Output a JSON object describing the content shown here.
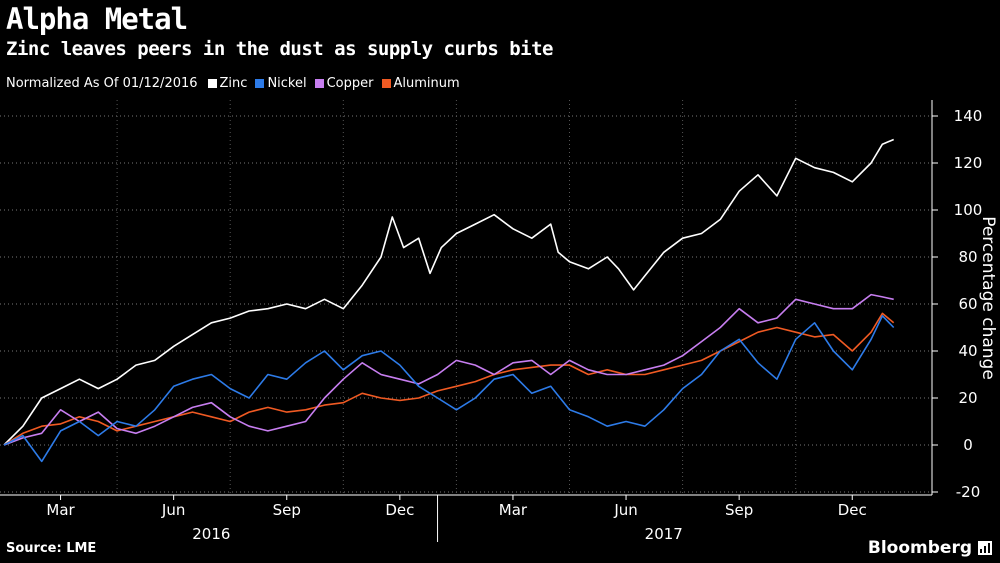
{
  "header": {
    "title": "Alpha Metal",
    "subtitle": "Zinc leaves peers in the dust as supply curbs bite"
  },
  "legend": {
    "note": "Normalized As Of 01/12/2016",
    "items": [
      {
        "label": "Zinc",
        "color": "#ffffff"
      },
      {
        "label": "Nickel",
        "color": "#2d7be8"
      },
      {
        "label": "Copper",
        "color": "#c77ef0"
      },
      {
        "label": "Aluminum",
        "color": "#f05a23"
      }
    ]
  },
  "footer": {
    "source": "Source: LME",
    "brand": "Bloomberg"
  },
  "chart_data": {
    "type": "line",
    "title": "Alpha Metal",
    "subtitle": "Zinc leaves peers in the dust as supply curbs bite",
    "ylabel": "Percentage change",
    "ylim": [
      -25,
      145
    ],
    "yticks": [
      -20,
      0,
      20,
      40,
      60,
      80,
      100,
      120,
      140
    ],
    "xlim": [
      0,
      23.6
    ],
    "x_tick_positions": [
      1.5,
      4.5,
      7.5,
      10.5,
      13.5,
      16.5,
      19.5,
      22.5
    ],
    "x_tick_labels": [
      "Mar",
      "Jun",
      "Sep",
      "Dec",
      "Mar",
      "Jun",
      "Sep",
      "Dec"
    ],
    "year_labels": [
      {
        "label": "2016",
        "x": 5.5
      },
      {
        "label": "2017",
        "x": 17.5
      }
    ],
    "year_boundary": 11.5,
    "x_unit": "months since 01/12/2016",
    "grid": "horizontal dotted",
    "series": [
      {
        "name": "Zinc",
        "color": "#ffffff",
        "points": [
          [
            0,
            0
          ],
          [
            0.5,
            8
          ],
          [
            1,
            20
          ],
          [
            1.5,
            24
          ],
          [
            2,
            28
          ],
          [
            2.5,
            24
          ],
          [
            3,
            28
          ],
          [
            3.5,
            34
          ],
          [
            4,
            36
          ],
          [
            4.5,
            42
          ],
          [
            5,
            47
          ],
          [
            5.5,
            52
          ],
          [
            6,
            54
          ],
          [
            6.5,
            57
          ],
          [
            7,
            58
          ],
          [
            7.5,
            60
          ],
          [
            8,
            58
          ],
          [
            8.5,
            62
          ],
          [
            9,
            58
          ],
          [
            9.5,
            68
          ],
          [
            10,
            80
          ],
          [
            10.3,
            97
          ],
          [
            10.6,
            84
          ],
          [
            11,
            88
          ],
          [
            11.3,
            73
          ],
          [
            11.6,
            84
          ],
          [
            12,
            90
          ],
          [
            12.5,
            94
          ],
          [
            13,
            98
          ],
          [
            13.5,
            92
          ],
          [
            14,
            88
          ],
          [
            14.5,
            94
          ],
          [
            14.7,
            82
          ],
          [
            15,
            78
          ],
          [
            15.5,
            75
          ],
          [
            16,
            80
          ],
          [
            16.3,
            75
          ],
          [
            16.7,
            66
          ],
          [
            17,
            72
          ],
          [
            17.5,
            82
          ],
          [
            18,
            88
          ],
          [
            18.5,
            90
          ],
          [
            19,
            96
          ],
          [
            19.5,
            108
          ],
          [
            20,
            115
          ],
          [
            20.5,
            106
          ],
          [
            21,
            122
          ],
          [
            21.5,
            118
          ],
          [
            22,
            116
          ],
          [
            22.5,
            112
          ],
          [
            23,
            120
          ],
          [
            23.3,
            128
          ],
          [
            23.6,
            130
          ]
        ]
      },
      {
        "name": "Nickel",
        "color": "#2d7be8",
        "points": [
          [
            0,
            0
          ],
          [
            0.5,
            4
          ],
          [
            1,
            -7
          ],
          [
            1.5,
            6
          ],
          [
            2,
            10
          ],
          [
            2.5,
            4
          ],
          [
            3,
            10
          ],
          [
            3.5,
            8
          ],
          [
            4,
            15
          ],
          [
            4.5,
            25
          ],
          [
            5,
            28
          ],
          [
            5.5,
            30
          ],
          [
            6,
            24
          ],
          [
            6.5,
            20
          ],
          [
            7,
            30
          ],
          [
            7.5,
            28
          ],
          [
            8,
            35
          ],
          [
            8.5,
            40
          ],
          [
            9,
            32
          ],
          [
            9.5,
            38
          ],
          [
            10,
            40
          ],
          [
            10.5,
            34
          ],
          [
            11,
            25
          ],
          [
            11.5,
            20
          ],
          [
            12,
            15
          ],
          [
            12.5,
            20
          ],
          [
            13,
            28
          ],
          [
            13.5,
            30
          ],
          [
            14,
            22
          ],
          [
            14.5,
            25
          ],
          [
            15,
            15
          ],
          [
            15.5,
            12
          ],
          [
            16,
            8
          ],
          [
            16.5,
            10
          ],
          [
            17,
            8
          ],
          [
            17.5,
            15
          ],
          [
            18,
            24
          ],
          [
            18.5,
            30
          ],
          [
            19,
            40
          ],
          [
            19.5,
            45
          ],
          [
            20,
            35
          ],
          [
            20.5,
            28
          ],
          [
            21,
            45
          ],
          [
            21.5,
            52
          ],
          [
            22,
            40
          ],
          [
            22.5,
            32
          ],
          [
            23,
            45
          ],
          [
            23.3,
            55
          ],
          [
            23.6,
            50
          ]
        ]
      },
      {
        "name": "Copper",
        "color": "#c77ef0",
        "points": [
          [
            0,
            0
          ],
          [
            0.5,
            3
          ],
          [
            1,
            5
          ],
          [
            1.5,
            15
          ],
          [
            2,
            10
          ],
          [
            2.5,
            14
          ],
          [
            3,
            7
          ],
          [
            3.5,
            5
          ],
          [
            4,
            8
          ],
          [
            4.5,
            12
          ],
          [
            5,
            16
          ],
          [
            5.5,
            18
          ],
          [
            6,
            12
          ],
          [
            6.5,
            8
          ],
          [
            7,
            6
          ],
          [
            7.5,
            8
          ],
          [
            8,
            10
          ],
          [
            8.5,
            20
          ],
          [
            9,
            28
          ],
          [
            9.5,
            35
          ],
          [
            10,
            30
          ],
          [
            10.5,
            28
          ],
          [
            11,
            26
          ],
          [
            11.5,
            30
          ],
          [
            12,
            36
          ],
          [
            12.5,
            34
          ],
          [
            13,
            30
          ],
          [
            13.5,
            35
          ],
          [
            14,
            36
          ],
          [
            14.5,
            30
          ],
          [
            15,
            36
          ],
          [
            15.5,
            32
          ],
          [
            16,
            30
          ],
          [
            16.5,
            30
          ],
          [
            17,
            32
          ],
          [
            17.5,
            34
          ],
          [
            18,
            38
          ],
          [
            18.5,
            44
          ],
          [
            19,
            50
          ],
          [
            19.5,
            58
          ],
          [
            20,
            52
          ],
          [
            20.5,
            54
          ],
          [
            21,
            62
          ],
          [
            21.5,
            60
          ],
          [
            22,
            58
          ],
          [
            22.5,
            58
          ],
          [
            23,
            64
          ],
          [
            23.3,
            63
          ],
          [
            23.6,
            62
          ]
        ]
      },
      {
        "name": "Aluminum",
        "color": "#f05a23",
        "points": [
          [
            0,
            0
          ],
          [
            0.5,
            5
          ],
          [
            1,
            8
          ],
          [
            1.5,
            9
          ],
          [
            2,
            12
          ],
          [
            2.5,
            10
          ],
          [
            3,
            6
          ],
          [
            3.5,
            8
          ],
          [
            4,
            10
          ],
          [
            4.5,
            12
          ],
          [
            5,
            14
          ],
          [
            5.5,
            12
          ],
          [
            6,
            10
          ],
          [
            6.5,
            14
          ],
          [
            7,
            16
          ],
          [
            7.5,
            14
          ],
          [
            8,
            15
          ],
          [
            8.5,
            17
          ],
          [
            9,
            18
          ],
          [
            9.5,
            22
          ],
          [
            10,
            20
          ],
          [
            10.5,
            19
          ],
          [
            11,
            20
          ],
          [
            11.5,
            23
          ],
          [
            12,
            25
          ],
          [
            12.5,
            27
          ],
          [
            13,
            30
          ],
          [
            13.5,
            32
          ],
          [
            14,
            33
          ],
          [
            14.5,
            34
          ],
          [
            15,
            34
          ],
          [
            15.5,
            30
          ],
          [
            16,
            32
          ],
          [
            16.5,
            30
          ],
          [
            17,
            30
          ],
          [
            17.5,
            32
          ],
          [
            18,
            34
          ],
          [
            18.5,
            36
          ],
          [
            19,
            40
          ],
          [
            19.5,
            44
          ],
          [
            20,
            48
          ],
          [
            20.5,
            50
          ],
          [
            21,
            48
          ],
          [
            21.5,
            46
          ],
          [
            22,
            47
          ],
          [
            22.5,
            40
          ],
          [
            23,
            48
          ],
          [
            23.3,
            56
          ],
          [
            23.6,
            52
          ]
        ]
      }
    ]
  }
}
